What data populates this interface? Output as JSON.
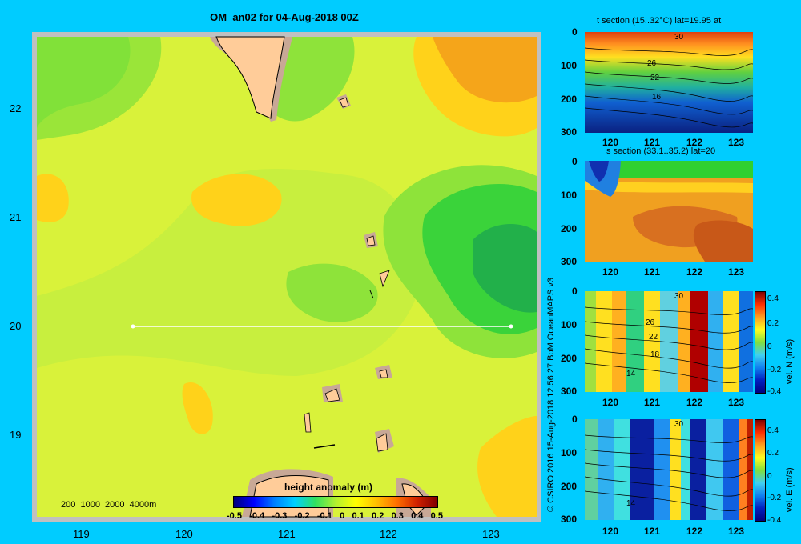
{
  "map": {
    "title": "OM_an02 for 04-Aug-2018 00Z",
    "lon_ticks": [
      "119",
      "120",
      "121",
      "122",
      "123"
    ],
    "lat_ticks": [
      "22",
      "21",
      "20",
      "19"
    ],
    "depth_legend": "200  1000  2000  4000m",
    "colorbar_title": "height anomaly  (m)",
    "colorbar_ticks": [
      "-0.5",
      "-0.4",
      "-0.3",
      "-0.2",
      "-0.1",
      "0",
      "0.1",
      "0.2",
      "0.3",
      "0.4",
      "0.5"
    ],
    "section_line": {
      "lat": 20,
      "lon_start": 119.5,
      "lon_end": 123.2
    }
  },
  "credit": "© CSIRO 2016   15-Aug-2018 12:56:27 BoM OceanMAPS v3",
  "panels": [
    {
      "id": "t",
      "title": "t section (15..32°C) lat=19.95 at",
      "contour_labels": [
        "30",
        "26",
        "22",
        "16"
      ]
    },
    {
      "id": "s",
      "title": "s section (33.1..35.2) lat=20",
      "contour_labels": []
    },
    {
      "id": "vn",
      "title": "",
      "contour_labels": [
        "30",
        "26",
        "22",
        "18",
        "14"
      ],
      "colorbar_label": "vel. N (m/s)"
    },
    {
      "id": "ve",
      "title": "",
      "contour_labels": [
        "30",
        "14"
      ],
      "colorbar_label": "vel. E (m/s)"
    }
  ],
  "panel_x_ticks": [
    "120",
    "121",
    "122",
    "123"
  ],
  "panel_depth_ticks": [
    "0",
    "100",
    "200",
    "300"
  ],
  "vel_colorbar_ticks": [
    "0.4",
    "0.2",
    "0",
    "-0.2",
    "-0.4"
  ],
  "colors": {
    "background": "#00ccff",
    "land": "#ffcc99",
    "shelf": "#c8a896",
    "frame": "#c0c0c0"
  }
}
